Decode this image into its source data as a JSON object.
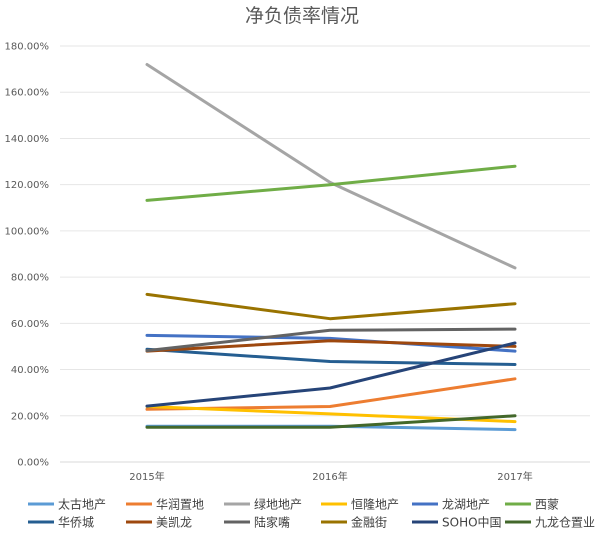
{
  "chart_data": {
    "type": "line",
    "title": "净负债率情况",
    "xlabel": "",
    "ylabel": "",
    "categories": [
      "2015年",
      "2016年",
      "2017年"
    ],
    "ylim": [
      0,
      180
    ],
    "yticks": [
      "0.00%",
      "20.00%",
      "40.00%",
      "60.00%",
      "80.00%",
      "100.00%",
      "120.00%",
      "140.00%",
      "160.00%",
      "180.00%"
    ],
    "grid": true,
    "legend_position": "bottom",
    "series": [
      {
        "name": "太古地产",
        "color": "#5b9bd5",
        "values": [
          15.5,
          15.5,
          14.0
        ]
      },
      {
        "name": "华润置地",
        "color": "#ed7d31",
        "values": [
          22.8,
          24.0,
          36.0
        ]
      },
      {
        "name": "绿地地产",
        "color": "#a5a5a5",
        "values": [
          172.0,
          121.0,
          84.0
        ]
      },
      {
        "name": "恒隆地产",
        "color": "#ffc000",
        "values": [
          24.0,
          20.8,
          17.5
        ]
      },
      {
        "name": "龙湖地产",
        "color": "#4472c4",
        "values": [
          54.8,
          53.5,
          48.0
        ]
      },
      {
        "name": "西蒙",
        "color": "#70ad47",
        "values": [
          113.2,
          120.0,
          128.0
        ]
      },
      {
        "name": "华侨城",
        "color": "#255e91",
        "values": [
          48.8,
          43.5,
          42.2
        ]
      },
      {
        "name": "美凯龙",
        "color": "#9e480e",
        "values": [
          48.0,
          52.5,
          50.0
        ]
      },
      {
        "name": "陆家嘴",
        "color": "#636363",
        "values": [
          48.2,
          57.0,
          57.5
        ]
      },
      {
        "name": "金融街",
        "color": "#997300",
        "values": [
          72.5,
          62.0,
          68.5
        ]
      },
      {
        "name": "SOHO中国",
        "color": "#264478",
        "values": [
          24.2,
          32.0,
          51.5
        ]
      },
      {
        "name": "九龙仓置业",
        "color": "#43682b",
        "values": [
          15.0,
          15.0,
          20.0
        ]
      }
    ]
  }
}
